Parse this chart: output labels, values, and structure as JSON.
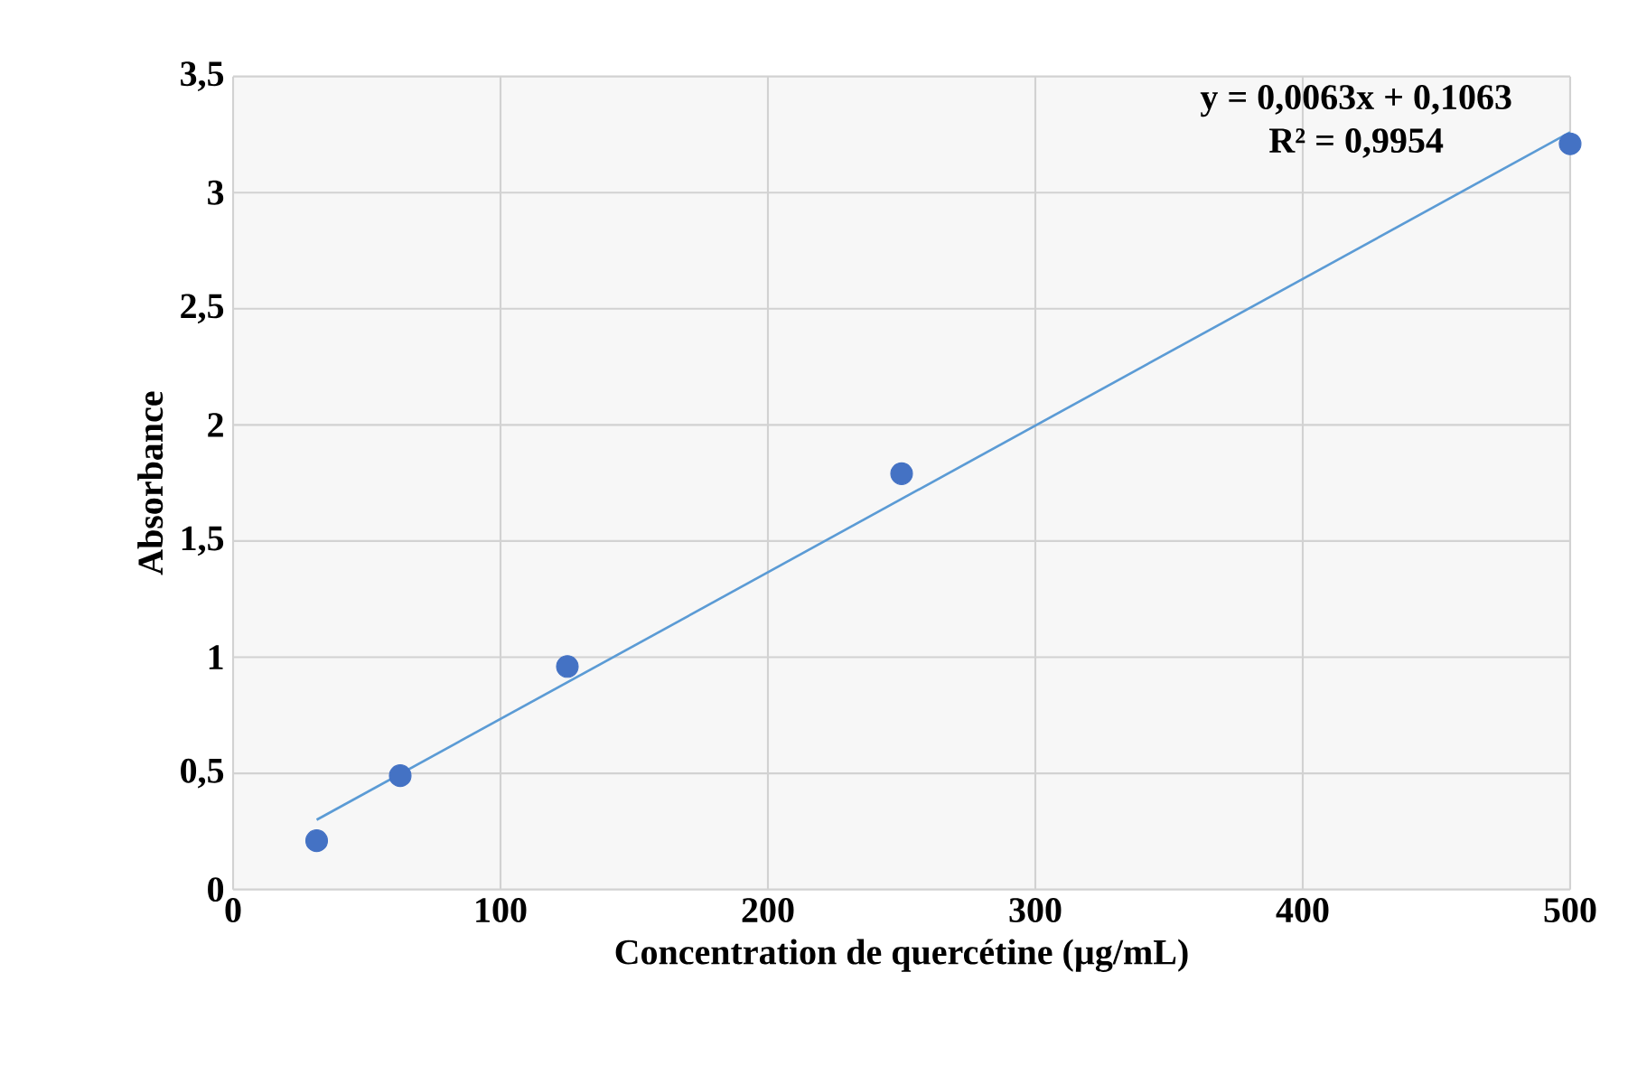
{
  "chart_data": {
    "type": "scatter",
    "xlabel": "Concentration de quercétine (µg/mL)",
    "ylabel": "Absorbance",
    "annotations": [
      "y = 0,0063x + 0,1063",
      "R² = 0,9954"
    ],
    "series": [
      {
        "type": "scatter",
        "color": "#4472c4",
        "marker": "circle",
        "x": [
          31.25,
          62.5,
          125,
          250,
          500
        ],
        "values": [
          0.21,
          0.49,
          0.96,
          1.79,
          3.21
        ]
      },
      {
        "type": "line",
        "color": "#5b9bd5",
        "marker": "none",
        "line_style": "solid",
        "x": [
          31.25,
          500
        ],
        "values": [
          0.3,
          3.26
        ]
      }
    ],
    "xlim": [
      0,
      500
    ],
    "ylim": [
      0,
      3.5
    ],
    "xticks": [
      0,
      100,
      200,
      300,
      400,
      500
    ],
    "yticks": [
      0,
      {
        "value": 0.5,
        "label": "0,5"
      },
      1,
      {
        "value": 1.5,
        "label": "1,5"
      },
      2,
      {
        "value": 2.5,
        "label": "2,5"
      },
      3,
      {
        "value": 3.5,
        "label": "3,5"
      }
    ],
    "grid": true
  }
}
